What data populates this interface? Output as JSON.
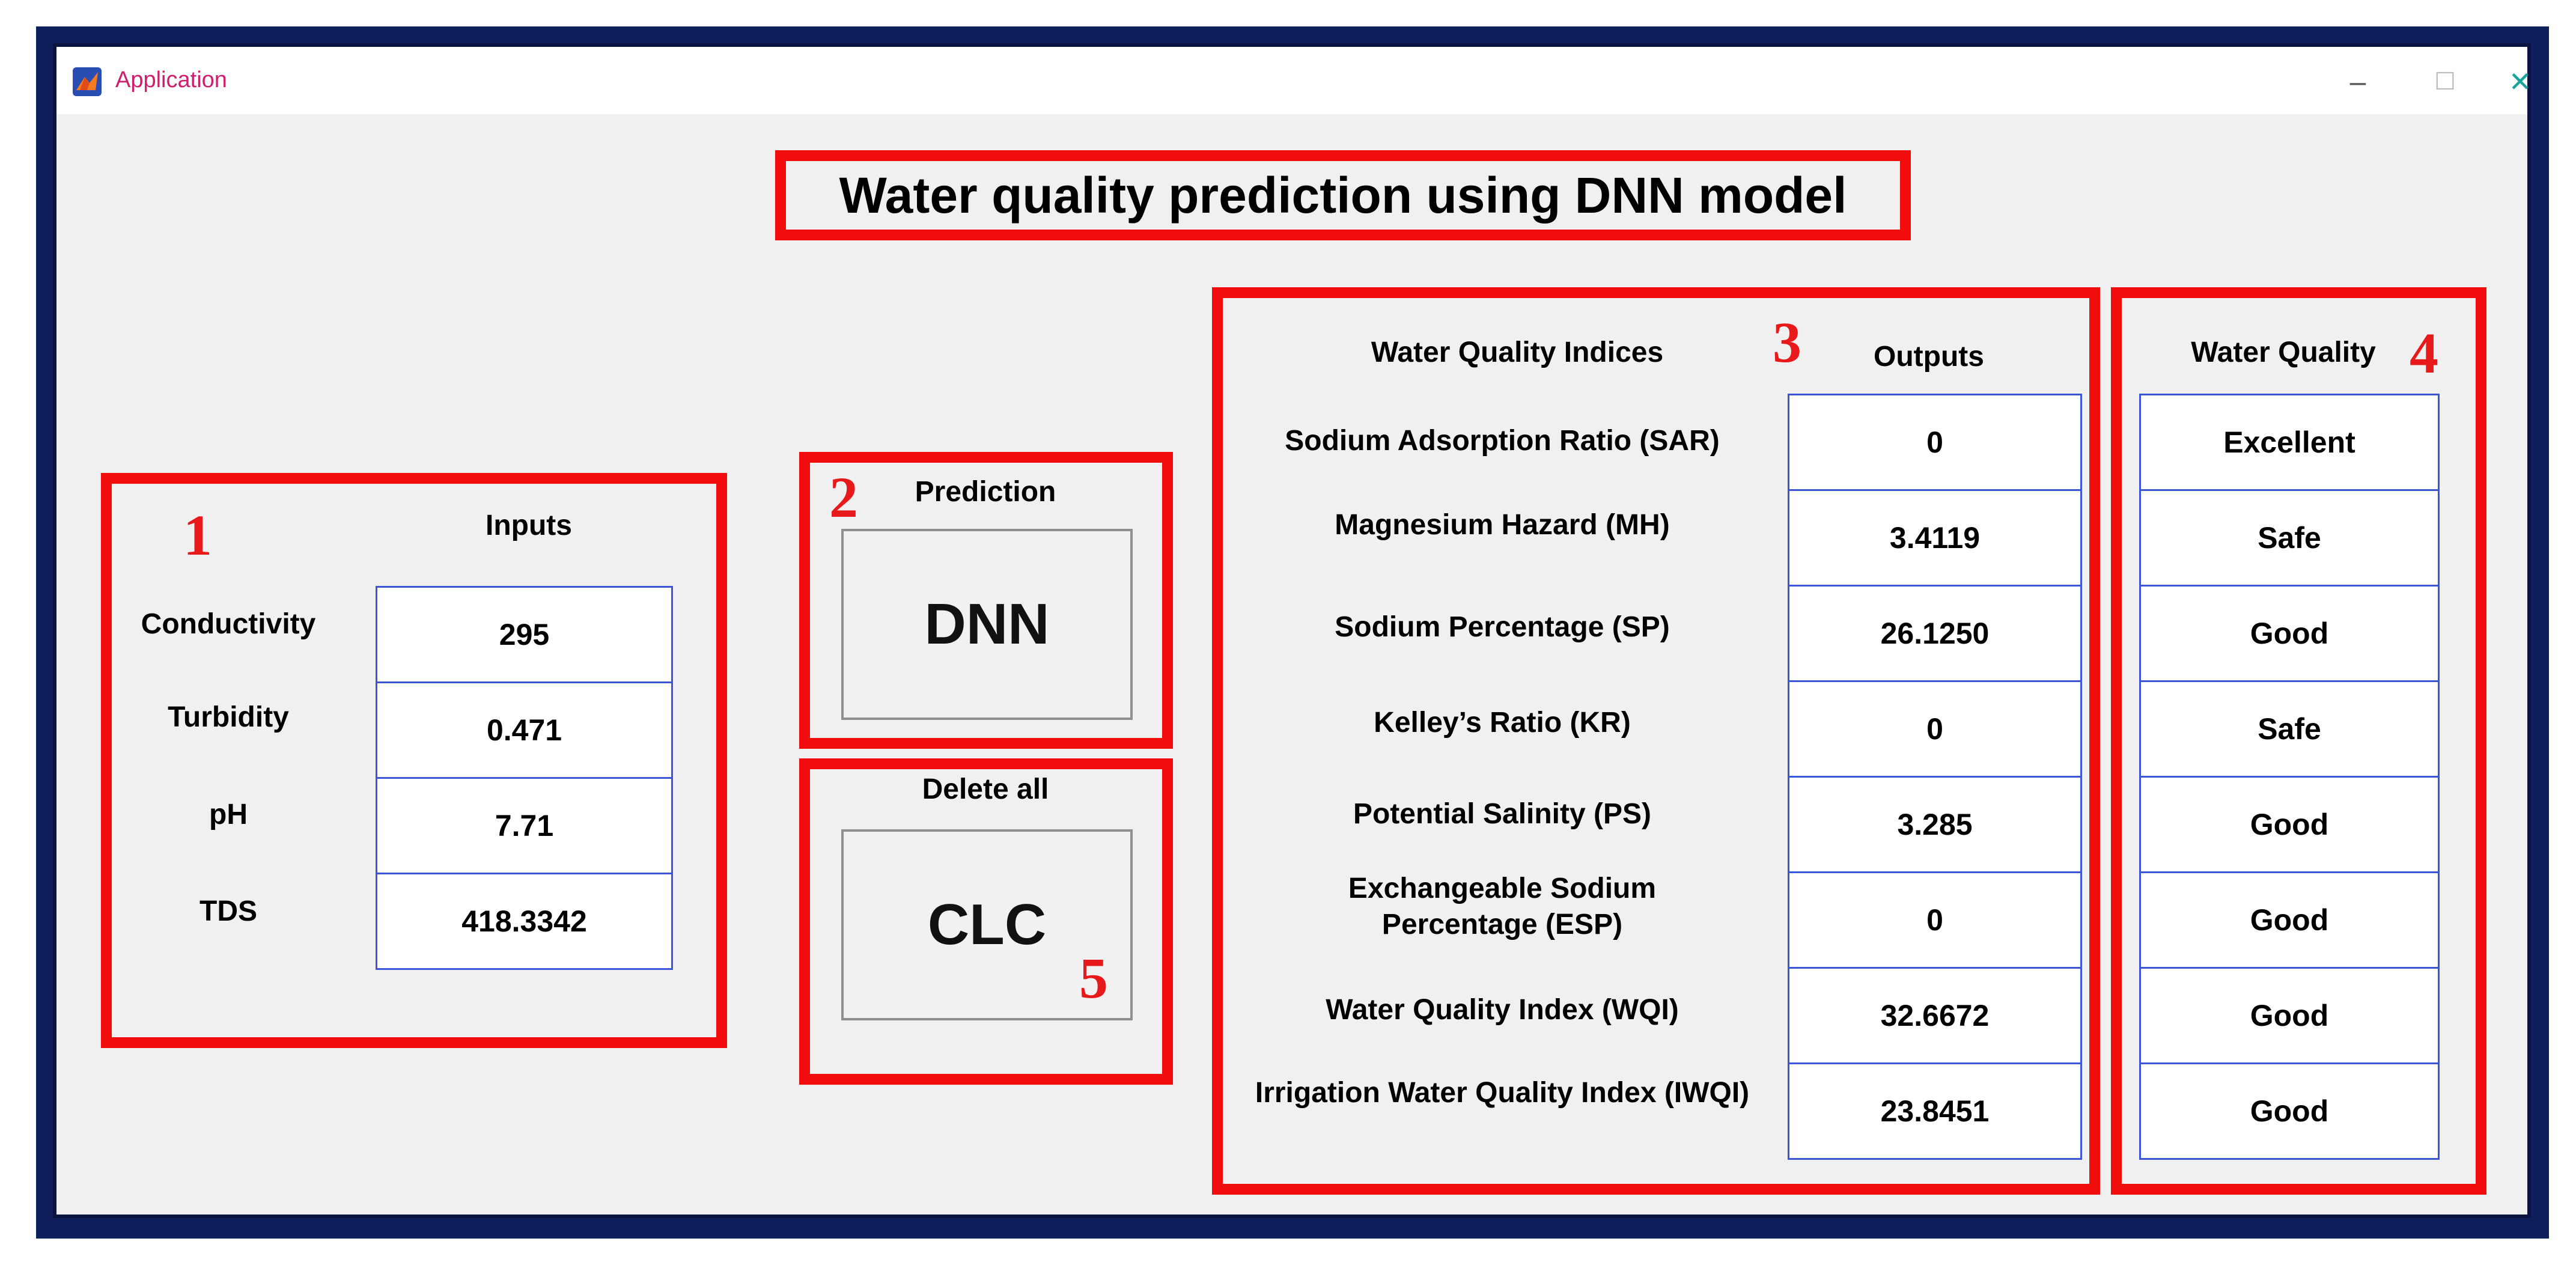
{
  "window": {
    "title": "Application",
    "minimize_glyph": "–",
    "maximize_glyph": "☐",
    "close_glyph": "✕",
    "close_color": "#1aa39b"
  },
  "main_title": "Water quality prediction using DNN model",
  "callouts": [
    "1",
    "2",
    "3",
    "4",
    "5"
  ],
  "inputs_panel": {
    "heading": "Inputs",
    "fields": [
      {
        "label": "Conductivity",
        "value": "295"
      },
      {
        "label": "Turbidity",
        "value": "0.471"
      },
      {
        "label": "pH",
        "value": "7.71"
      },
      {
        "label": "TDS",
        "value": "418.3342"
      }
    ]
  },
  "prediction_panel": {
    "heading": "Prediction",
    "button_label": "DNN"
  },
  "delete_panel": {
    "heading": "Delete all",
    "button_label": "CLC"
  },
  "indices_panel": {
    "indices_heading": "Water Quality Indices",
    "outputs_heading": "Outputs",
    "rows": [
      {
        "index": "Sodium Adsorption Ratio (SAR)",
        "output": "0"
      },
      {
        "index": "Magnesium Hazard (MH)",
        "output": "3.4119"
      },
      {
        "index": "Sodium Percentage (SP)",
        "output": "26.1250"
      },
      {
        "index": "Kelley’s Ratio (KR)",
        "output": "0"
      },
      {
        "index": "Potential Salinity (PS)",
        "output": "3.285"
      },
      {
        "index": "Exchangeable Sodium Percentage (ESP)",
        "index_line1": "Exchangeable Sodium",
        "index_line2": "Percentage (ESP)",
        "output": "0"
      },
      {
        "index": "Water Quality Index (WQI)",
        "output": "32.6672"
      },
      {
        "index": "Irrigation Water Quality Index (IWQI)",
        "output": "23.8451"
      }
    ]
  },
  "quality_panel": {
    "heading": "Water Quality",
    "values": [
      "Excellent",
      "Safe",
      "Good",
      "Safe",
      "Good",
      "Good",
      "Good",
      "Good"
    ]
  },
  "colors": {
    "annotation_red": "#f20d0d",
    "field_border": "#3b54d8",
    "frame_navy": "#0f1f5c"
  }
}
